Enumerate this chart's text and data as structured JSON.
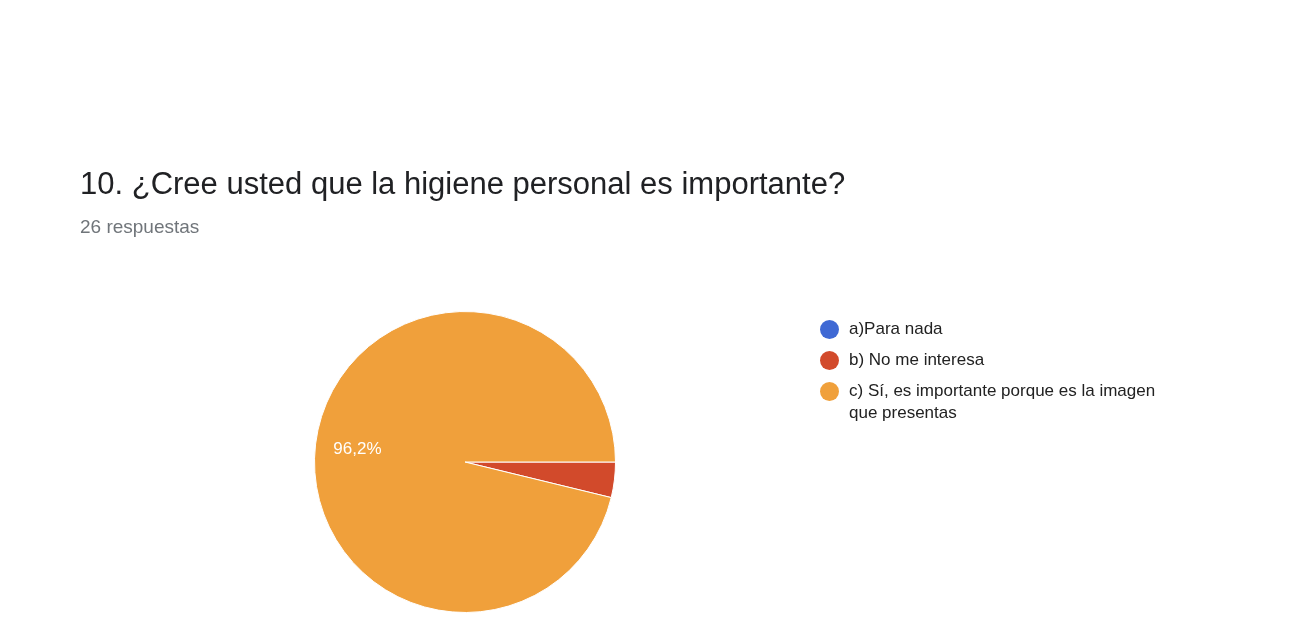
{
  "chart_data": {
    "type": "pie",
    "title": "10. ¿Cree usted que la higiene personal es importante?",
    "subtitle": "26 respuestas",
    "categories": [
      "a)Para nada",
      "b) No me interesa",
      "c) Sí, es importante porque es la imagen que presentas"
    ],
    "values": [
      0,
      3.8,
      96.2
    ],
    "colors": [
      "#3f69d4",
      "#d24a2b",
      "#f0a03b"
    ],
    "value_labels": [
      null,
      null,
      "96,2%"
    ],
    "legend": "right"
  }
}
